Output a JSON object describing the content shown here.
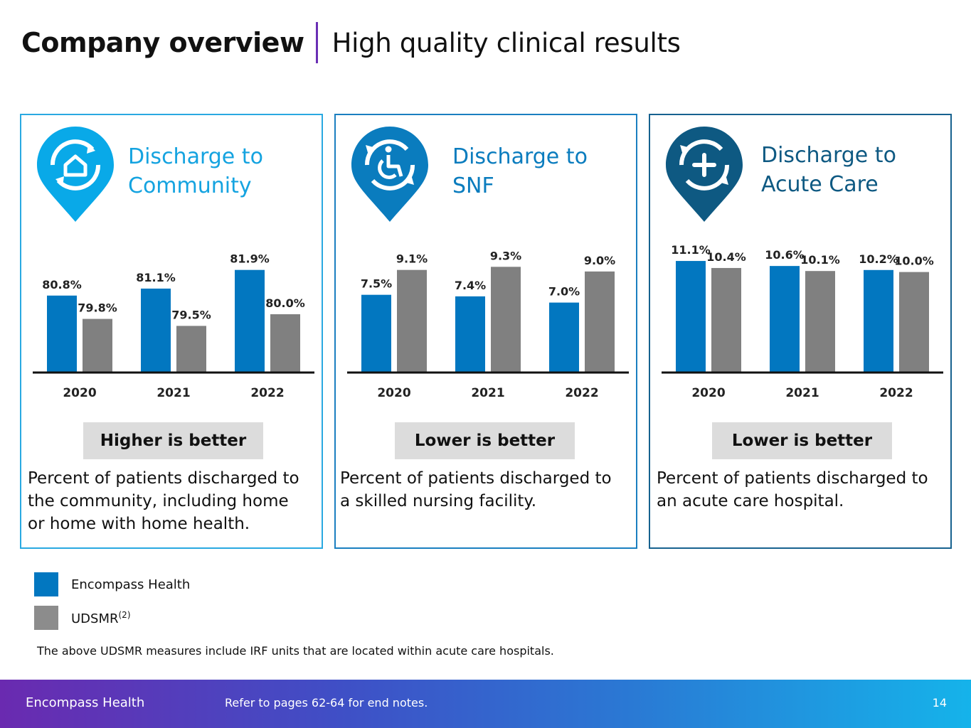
{
  "header": {
    "title": "Company overview",
    "subtitle": "High quality clinical results"
  },
  "colors": {
    "encompass": "#0277c0",
    "udsmr": "#808080",
    "pin1": "#09a9e8",
    "pin2": "#0a7cbe",
    "pin3": "#0e5982"
  },
  "panels": [
    {
      "title_line1": "Discharge to",
      "title_line2": "Community",
      "icon": "home-cycle-icon",
      "badge": "Higher is better",
      "desc": [
        "Percent of patients discharged to",
        "the community, including home",
        "or home with home health."
      ]
    },
    {
      "title_line1": "Discharge to",
      "title_line2": "SNF",
      "icon": "wheelchair-cycle-icon",
      "badge": "Lower is better",
      "desc": [
        "Percent of patients discharged to",
        "a skilled nursing facility."
      ]
    },
    {
      "title_line1": "Discharge to",
      "title_line2": "Acute Care",
      "icon": "plus-cycle-icon",
      "badge": "Lower is better",
      "desc": [
        "Percent of patients discharged to",
        "an acute care hospital."
      ]
    }
  ],
  "chart_data": [
    {
      "type": "bar",
      "title": "Discharge to Community",
      "categories": [
        "2020",
        "2021",
        "2022"
      ],
      "series": [
        {
          "name": "Encompass Health",
          "values": [
            80.8,
            81.1,
            81.9
          ],
          "labels": [
            "80.8%",
            "81.1%",
            "81.9%"
          ]
        },
        {
          "name": "UDSMR",
          "values": [
            79.8,
            79.5,
            80.0
          ],
          "labels": [
            "79.8%",
            "79.5%",
            "80.0%"
          ]
        }
      ],
      "ylim": [
        77.5,
        82.5
      ]
    },
    {
      "type": "bar",
      "title": "Discharge to SNF",
      "categories": [
        "2020",
        "2021",
        "2022"
      ],
      "series": [
        {
          "name": "Encompass Health",
          "values": [
            7.5,
            7.4,
            7.0
          ],
          "labels": [
            "7.5%",
            "7.4%",
            "7.0%"
          ]
        },
        {
          "name": "UDSMR",
          "values": [
            9.1,
            9.3,
            9.0
          ],
          "labels": [
            "9.1%",
            "9.3%",
            "9.0%"
          ]
        }
      ],
      "ylim": [
        2.5,
        10
      ]
    },
    {
      "type": "bar",
      "title": "Discharge to Acute Care",
      "categories": [
        "2020",
        "2021",
        "2022"
      ],
      "series": [
        {
          "name": "Encompass Health",
          "values": [
            11.1,
            10.6,
            10.2
          ],
          "labels": [
            "11.1%",
            "10.6%",
            "10.2%"
          ]
        },
        {
          "name": "UDSMR",
          "values": [
            10.4,
            10.1,
            10.0
          ],
          "labels": [
            "10.4%",
            "10.1%",
            "10.0%"
          ]
        }
      ],
      "ylim": [
        0,
        11.6
      ]
    }
  ],
  "legend": {
    "item1": "Encompass Health",
    "item2": "UDSMR",
    "item2_sup": "(2)"
  },
  "footnote": "The above UDSMR measures include IRF units that are located within acute care hospitals.",
  "footer": {
    "company": "Encompass Health",
    "note": "Refer to pages 62-64 for end notes.",
    "page": "14"
  }
}
